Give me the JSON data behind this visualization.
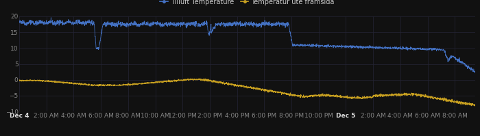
{
  "background_color": "#111111",
  "plot_bg_color": "#111111",
  "grid_color": "#252535",
  "blue_color": "#4472c4",
  "yellow_color": "#c8a020",
  "legend_labels": [
    "Tilluft Temperature",
    "Temperatur ute framsida"
  ],
  "ylim": [
    -10,
    20
  ],
  "yticks": [
    -10,
    -5,
    0,
    5,
    10,
    15,
    20
  ],
  "tick_fontsize": 6.5
}
